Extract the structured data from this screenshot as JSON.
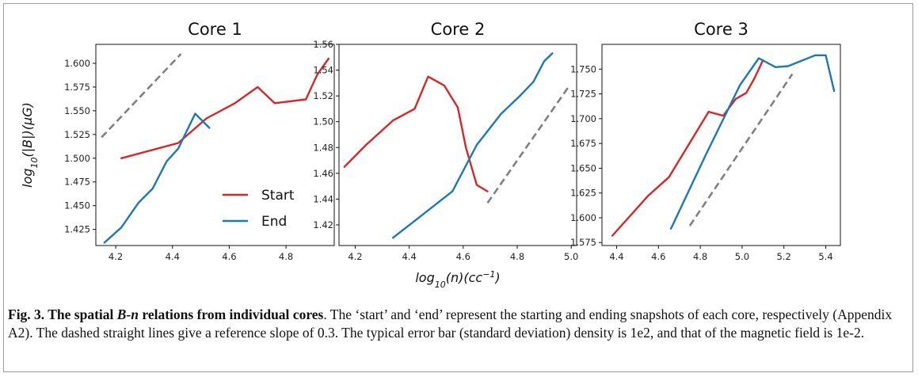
{
  "chart_data": [
    {
      "type": "line",
      "title": "Core 1",
      "ylabel": "log10(|B|)(μG)",
      "xlim": [
        4.13,
        4.97
      ],
      "ylim": [
        1.408,
        1.62
      ],
      "xticks": [
        "4.2",
        "4.4",
        "4.6",
        "4.8"
      ],
      "yticks": [
        "1.425",
        "1.450",
        "1.475",
        "1.500",
        "1.525",
        "1.550",
        "1.575",
        "1.600"
      ],
      "legend": "lower-right",
      "series": [
        {
          "name": "Start",
          "color": "#d62728",
          "dashed": false,
          "x": [
            4.22,
            4.42,
            4.52,
            4.62,
            4.7,
            4.76,
            4.87,
            4.91,
            4.95
          ],
          "y": [
            1.5,
            1.516,
            1.542,
            1.558,
            1.575,
            1.558,
            1.562,
            1.588,
            1.605
          ]
        },
        {
          "name": "End",
          "color": "#1f77b4",
          "dashed": false,
          "x": [
            4.16,
            4.22,
            4.28,
            4.33,
            4.38,
            4.42,
            4.48,
            4.53
          ],
          "y": [
            1.411,
            1.427,
            1.453,
            1.468,
            1.497,
            1.51,
            1.547,
            1.532
          ]
        },
        {
          "name": "",
          "color": "#808080",
          "dashed": true,
          "x": [
            4.15,
            4.43
          ],
          "y": [
            1.522,
            1.61
          ]
        }
      ]
    },
    {
      "type": "line",
      "title": "Core 2",
      "xlabel": "log10(n)(cc-1)",
      "xlim": [
        4.14,
        5.02
      ],
      "ylim": [
        1.404,
        1.56
      ],
      "xticks": [
        "4.2",
        "4.4",
        "4.6",
        "4.8",
        "5.0"
      ],
      "yticks": [
        "1.42",
        "1.44",
        "1.46",
        "1.48",
        "1.50",
        "1.52",
        "1.54",
        "1.56"
      ],
      "series": [
        {
          "name": "Start",
          "color": "#d62728",
          "dashed": false,
          "x": [
            4.16,
            4.24,
            4.34,
            4.42,
            4.47,
            4.53,
            4.58,
            4.61,
            4.65,
            4.69
          ],
          "y": [
            1.465,
            1.482,
            1.501,
            1.51,
            1.535,
            1.528,
            1.511,
            1.48,
            1.451,
            1.446
          ]
        },
        {
          "name": "End",
          "color": "#1f77b4",
          "dashed": false,
          "x": [
            4.34,
            4.45,
            4.56,
            4.65,
            4.74,
            4.81,
            4.86,
            4.9,
            4.93
          ],
          "y": [
            1.41,
            1.428,
            1.446,
            1.482,
            1.506,
            1.52,
            1.531,
            1.547,
            1.553
          ]
        },
        {
          "name": "",
          "color": "#808080",
          "dashed": true,
          "x": [
            4.69,
            4.99
          ],
          "y": [
            1.437,
            1.527
          ]
        }
      ]
    },
    {
      "type": "line",
      "title": "Core 3",
      "xlim": [
        4.33,
        5.47
      ],
      "ylim": [
        1.572,
        1.775
      ],
      "xticks": [
        "4.4",
        "4.6",
        "4.8",
        "5.0",
        "5.2",
        "5.4"
      ],
      "yticks": [
        "1.575",
        "1.600",
        "1.625",
        "1.650",
        "1.675",
        "1.700",
        "1.725",
        "1.750"
      ],
      "series": [
        {
          "name": "Start",
          "color": "#d62728",
          "dashed": false,
          "x": [
            4.38,
            4.55,
            4.65,
            4.84,
            4.91,
            4.97,
            5.02,
            5.06,
            5.1
          ],
          "y": [
            1.582,
            1.622,
            1.641,
            1.707,
            1.703,
            1.72,
            1.726,
            1.741,
            1.759
          ]
        },
        {
          "name": "End",
          "color": "#1f77b4",
          "dashed": false,
          "x": [
            4.66,
            4.83,
            4.99,
            5.08,
            5.16,
            5.22,
            5.35,
            5.4,
            5.44
          ],
          "y": [
            1.589,
            1.665,
            1.734,
            1.761,
            1.752,
            1.753,
            1.764,
            1.764,
            1.728
          ]
        },
        {
          "name": "",
          "color": "#808080",
          "dashed": true,
          "x": [
            4.75,
            5.24
          ],
          "y": [
            1.592,
            1.745
          ]
        }
      ]
    }
  ],
  "caption": {
    "label": "Fig. 3. The spatial ",
    "label_em": "B-n",
    "label_rest": " relations from individual cores",
    "text": ". The ‘start’ and ‘end’ represent the starting and ending snapshots of each core, respectively (Appendix A2). The dashed straight lines give a reference slope of 0.3. The typical error bar (standard deviation) density is 1e2, and that of the magnetic field is 1e-2."
  }
}
